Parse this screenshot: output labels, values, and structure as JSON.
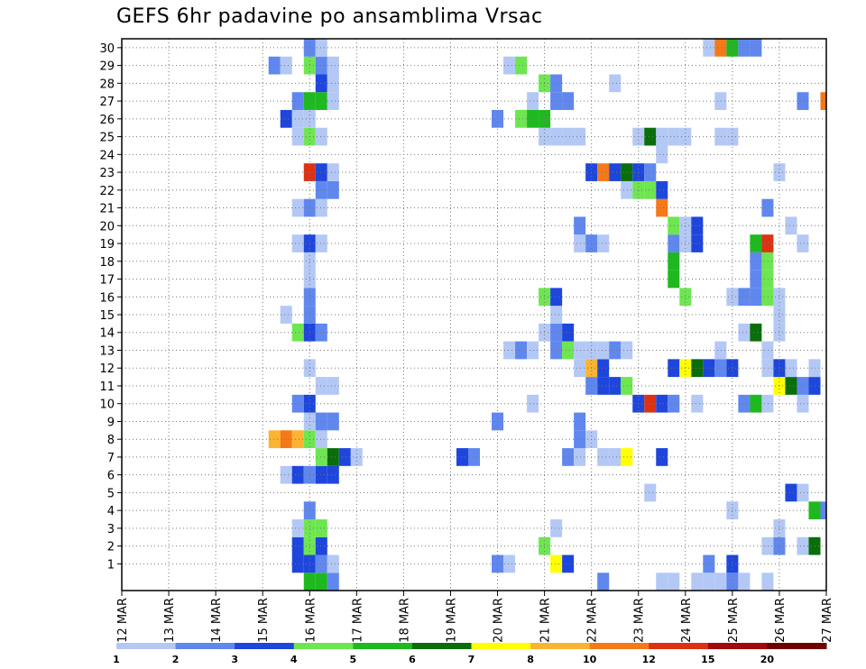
{
  "chart_data": {
    "type": "heatmap",
    "title": "GEFS 6hr padavine po ansamblima Vrsac",
    "xlabel": "",
    "ylabel": "",
    "x_tick_labels": [
      "12 MAR",
      "13 MAR",
      "14 MAR",
      "15 MAR",
      "16 MAR",
      "17 MAR",
      "18 MAR",
      "19 MAR",
      "20 MAR",
      "21 MAR",
      "22 MAR",
      "23 MAR",
      "24 MAR",
      "25 MAR",
      "26 MAR",
      "27 MAR"
    ],
    "xlim_steps": [
      0,
      60
    ],
    "steps_per_day": 4,
    "ylim": [
      0,
      30
    ],
    "y_tick_labels": [
      1,
      2,
      3,
      4,
      5,
      6,
      7,
      8,
      9,
      10,
      11,
      12,
      13,
      14,
      15,
      16,
      17,
      18,
      19,
      20,
      21,
      22,
      23,
      24,
      25,
      26,
      27,
      28,
      29,
      30
    ],
    "grid": true,
    "colorbar": {
      "labels": [
        "1",
        "2",
        "3",
        "4",
        "5",
        "6",
        "7",
        "8",
        "10",
        "12",
        "15",
        "20"
      ],
      "colors": [
        "#b4c8f5",
        "#5f87ee",
        "#1e46dc",
        "#6ee650",
        "#1eb91e",
        "#0a6e0a",
        "#ffff00",
        "#fab432",
        "#f57819",
        "#dc3214",
        "#a00a0a",
        "#6e0000"
      ]
    },
    "cells": [
      [
        16,
        0,
        5
      ],
      [
        17,
        0,
        5
      ],
      [
        18,
        0,
        2
      ],
      [
        55,
        0,
        1
      ],
      [
        61,
        0,
        2
      ],
      [
        41,
        0,
        2
      ],
      [
        46,
        0,
        1
      ],
      [
        47,
        0,
        1
      ],
      [
        50,
        0,
        1
      ],
      [
        51,
        0,
        1
      ],
      [
        49,
        0,
        1
      ],
      [
        52,
        0,
        2
      ],
      [
        53,
        0,
        1
      ],
      [
        15,
        1,
        3
      ],
      [
        16,
        1,
        3
      ],
      [
        17,
        1,
        2
      ],
      [
        18,
        1,
        1
      ],
      [
        32,
        1,
        2
      ],
      [
        33,
        1,
        1
      ],
      [
        37,
        1,
        7
      ],
      [
        38,
        1,
        3
      ],
      [
        50,
        1,
        2
      ],
      [
        52,
        1,
        3
      ],
      [
        15,
        2,
        3
      ],
      [
        16,
        2,
        4
      ],
      [
        17,
        2,
        3
      ],
      [
        36,
        2,
        4
      ],
      [
        55,
        2,
        1
      ],
      [
        56,
        2,
        2
      ],
      [
        58,
        2,
        1
      ],
      [
        59,
        2,
        6
      ],
      [
        15,
        3,
        1
      ],
      [
        16,
        3,
        4
      ],
      [
        17,
        3,
        4
      ],
      [
        37,
        3,
        1
      ],
      [
        56,
        3,
        1
      ],
      [
        16,
        4,
        2
      ],
      [
        52,
        4,
        1
      ],
      [
        59,
        4,
        5
      ],
      [
        60,
        4,
        2
      ],
      [
        45,
        5,
        1
      ],
      [
        57,
        5,
        3
      ],
      [
        58,
        5,
        1
      ],
      [
        14,
        6,
        1
      ],
      [
        15,
        6,
        3
      ],
      [
        16,
        6,
        2
      ],
      [
        17,
        6,
        3
      ],
      [
        18,
        6,
        3
      ],
      [
        17,
        7,
        4
      ],
      [
        18,
        7,
        6
      ],
      [
        19,
        7,
        3
      ],
      [
        20,
        7,
        1
      ],
      [
        29,
        7,
        3
      ],
      [
        30,
        7,
        2
      ],
      [
        38,
        7,
        2
      ],
      [
        39,
        7,
        1
      ],
      [
        41,
        7,
        1
      ],
      [
        42,
        7,
        1
      ],
      [
        43,
        7,
        7
      ],
      [
        46,
        7,
        3
      ],
      [
        13,
        8,
        8
      ],
      [
        14,
        8,
        10
      ],
      [
        15,
        8,
        8
      ],
      [
        16,
        8,
        4
      ],
      [
        17,
        8,
        1
      ],
      [
        39,
        8,
        2
      ],
      [
        40,
        8,
        1
      ],
      [
        16,
        9,
        1
      ],
      [
        17,
        9,
        2
      ],
      [
        18,
        9,
        2
      ],
      [
        32,
        9,
        2
      ],
      [
        39,
        9,
        2
      ],
      [
        15,
        10,
        2
      ],
      [
        16,
        10,
        3
      ],
      [
        35,
        10,
        1
      ],
      [
        44,
        10,
        3
      ],
      [
        45,
        10,
        12
      ],
      [
        46,
        10,
        3
      ],
      [
        47,
        10,
        2
      ],
      [
        49,
        10,
        1
      ],
      [
        53,
        10,
        2
      ],
      [
        54,
        10,
        5
      ],
      [
        55,
        10,
        1
      ],
      [
        58,
        10,
        1
      ],
      [
        17,
        11,
        1
      ],
      [
        18,
        11,
        1
      ],
      [
        40,
        11,
        2
      ],
      [
        41,
        11,
        3
      ],
      [
        42,
        11,
        3
      ],
      [
        43,
        11,
        4
      ],
      [
        56,
        11,
        7
      ],
      [
        57,
        11,
        6
      ],
      [
        58,
        11,
        2
      ],
      [
        59,
        11,
        3
      ],
      [
        16,
        12,
        1
      ],
      [
        39,
        12,
        1
      ],
      [
        40,
        12,
        8
      ],
      [
        41,
        12,
        3
      ],
      [
        47,
        12,
        3
      ],
      [
        48,
        12,
        7
      ],
      [
        49,
        12,
        6
      ],
      [
        50,
        12,
        3
      ],
      [
        51,
        12,
        2
      ],
      [
        52,
        12,
        3
      ],
      [
        55,
        12,
        1
      ],
      [
        56,
        12,
        3
      ],
      [
        57,
        12,
        1
      ],
      [
        59,
        12,
        1
      ],
      [
        33,
        13,
        1
      ],
      [
        34,
        13,
        2
      ],
      [
        35,
        13,
        1
      ],
      [
        37,
        13,
        2
      ],
      [
        38,
        13,
        4
      ],
      [
        39,
        13,
        1
      ],
      [
        40,
        13,
        1
      ],
      [
        41,
        13,
        1
      ],
      [
        42,
        13,
        2
      ],
      [
        43,
        13,
        1
      ],
      [
        51,
        13,
        1
      ],
      [
        55,
        13,
        1
      ],
      [
        15,
        14,
        4
      ],
      [
        16,
        14,
        3
      ],
      [
        17,
        14,
        2
      ],
      [
        36,
        14,
        1
      ],
      [
        37,
        14,
        2
      ],
      [
        38,
        14,
        3
      ],
      [
        53,
        14,
        1
      ],
      [
        54,
        14,
        6
      ],
      [
        56,
        14,
        1
      ],
      [
        14,
        15,
        1
      ],
      [
        16,
        15,
        2
      ],
      [
        37,
        15,
        1
      ],
      [
        56,
        15,
        1
      ],
      [
        16,
        16,
        2
      ],
      [
        36,
        16,
        4
      ],
      [
        37,
        16,
        3
      ],
      [
        48,
        16,
        4
      ],
      [
        52,
        16,
        1
      ],
      [
        53,
        16,
        2
      ],
      [
        54,
        16,
        2
      ],
      [
        55,
        16,
        4
      ],
      [
        56,
        16,
        1
      ],
      [
        16,
        17,
        1
      ],
      [
        47,
        17,
        5
      ],
      [
        54,
        17,
        2
      ],
      [
        55,
        17,
        4
      ],
      [
        16,
        18,
        1
      ],
      [
        47,
        18,
        5
      ],
      [
        54,
        18,
        2
      ],
      [
        55,
        18,
        4
      ],
      [
        15,
        19,
        1
      ],
      [
        16,
        19,
        3
      ],
      [
        17,
        19,
        1
      ],
      [
        39,
        19,
        1
      ],
      [
        40,
        19,
        2
      ],
      [
        41,
        19,
        1
      ],
      [
        47,
        19,
        2
      ],
      [
        48,
        19,
        1
      ],
      [
        49,
        19,
        3
      ],
      [
        54,
        19,
        5
      ],
      [
        55,
        19,
        12
      ],
      [
        58,
        19,
        1
      ],
      [
        39,
        20,
        2
      ],
      [
        47,
        20,
        4
      ],
      [
        48,
        20,
        1
      ],
      [
        49,
        20,
        3
      ],
      [
        57,
        20,
        1
      ],
      [
        15,
        21,
        1
      ],
      [
        16,
        21,
        2
      ],
      [
        17,
        21,
        1
      ],
      [
        46,
        21,
        10
      ],
      [
        55,
        21,
        2
      ],
      [
        17,
        22,
        2
      ],
      [
        18,
        22,
        2
      ],
      [
        43,
        22,
        1
      ],
      [
        44,
        22,
        4
      ],
      [
        45,
        22,
        4
      ],
      [
        46,
        22,
        3
      ],
      [
        16,
        23,
        12
      ],
      [
        17,
        23,
        3
      ],
      [
        18,
        23,
        1
      ],
      [
        40,
        23,
        3
      ],
      [
        41,
        23,
        10
      ],
      [
        42,
        23,
        3
      ],
      [
        43,
        23,
        6
      ],
      [
        44,
        23,
        3
      ],
      [
        45,
        23,
        2
      ],
      [
        56,
        23,
        1
      ],
      [
        46,
        24,
        1
      ],
      [
        15,
        25,
        1
      ],
      [
        16,
        25,
        4
      ],
      [
        17,
        25,
        1
      ],
      [
        36,
        25,
        1
      ],
      [
        37,
        25,
        1
      ],
      [
        38,
        25,
        1
      ],
      [
        39,
        25,
        1
      ],
      [
        44,
        25,
        1
      ],
      [
        45,
        25,
        6
      ],
      [
        46,
        25,
        1
      ],
      [
        47,
        25,
        1
      ],
      [
        48,
        25,
        1
      ],
      [
        51,
        25,
        1
      ],
      [
        52,
        25,
        1
      ],
      [
        14,
        26,
        3
      ],
      [
        15,
        26,
        1
      ],
      [
        16,
        26,
        1
      ],
      [
        32,
        26,
        2
      ],
      [
        34,
        26,
        4
      ],
      [
        35,
        26,
        5
      ],
      [
        36,
        26,
        5
      ],
      [
        15,
        27,
        2
      ],
      [
        16,
        27,
        5
      ],
      [
        17,
        27,
        5
      ],
      [
        18,
        27,
        1
      ],
      [
        35,
        27,
        1
      ],
      [
        37,
        27,
        2
      ],
      [
        38,
        27,
        2
      ],
      [
        51,
        27,
        1
      ],
      [
        58,
        27,
        2
      ],
      [
        60,
        27,
        10
      ],
      [
        17,
        28,
        3
      ],
      [
        18,
        28,
        1
      ],
      [
        36,
        28,
        4
      ],
      [
        37,
        28,
        2
      ],
      [
        42,
        28,
        1
      ],
      [
        13,
        29,
        2
      ],
      [
        14,
        29,
        1
      ],
      [
        16,
        29,
        4
      ],
      [
        17,
        29,
        2
      ],
      [
        18,
        29,
        1
      ],
      [
        33,
        29,
        1
      ],
      [
        34,
        29,
        4
      ],
      [
        16,
        30,
        2
      ],
      [
        17,
        30,
        1
      ],
      [
        50,
        30,
        1
      ],
      [
        51,
        30,
        10
      ],
      [
        52,
        30,
        5
      ],
      [
        53,
        30,
        2
      ],
      [
        54,
        30,
        2
      ]
    ]
  }
}
